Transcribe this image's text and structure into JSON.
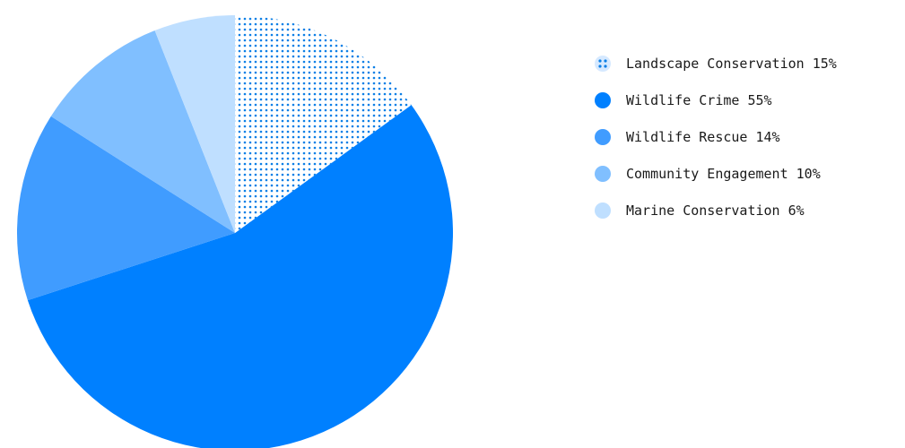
{
  "chart_data": {
    "type": "pie",
    "start_angle_deg": 0,
    "direction": "clockwise",
    "slices": [
      {
        "label": "Landscape Conservation",
        "value": 15,
        "display": "Landscape Conservation 15%",
        "color": "#5aaeff",
        "pattern": "dots"
      },
      {
        "label": "Wildlife Crime",
        "value": 55,
        "display": "Wildlife Crime 55%",
        "color": "#0080ff",
        "pattern": "none"
      },
      {
        "label": "Wildlife Rescue",
        "value": 14,
        "display": "Wildlife Rescue 14%",
        "color": "#409cff",
        "pattern": "none"
      },
      {
        "label": "Community Engagement",
        "value": 10,
        "display": "Community Engagement 10%",
        "color": "#80bfff",
        "pattern": "none"
      },
      {
        "label": "Marine Conservation",
        "value": 6,
        "display": "Marine Conservation 6%",
        "color": "#bfdfff",
        "pattern": "none"
      }
    ],
    "slice_draw_order": [
      1,
      2,
      3,
      0,
      4
    ],
    "legend_position": "right"
  }
}
